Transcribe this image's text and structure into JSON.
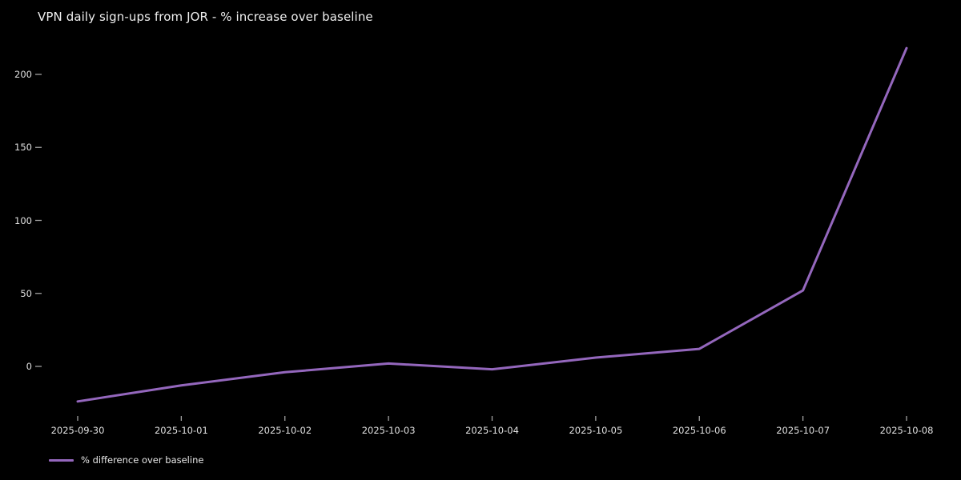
{
  "chart": {
    "title": "VPN daily sign-ups from JOR - % increase over baseline"
  },
  "legend": {
    "label": "% difference over baseline"
  },
  "chart_data": {
    "type": "line",
    "title": "VPN daily sign-ups from JOR - % increase over baseline",
    "x": [
      "2025-09-30",
      "2025-10-01",
      "2025-10-02",
      "2025-10-03",
      "2025-10-04",
      "2025-10-05",
      "2025-10-06",
      "2025-10-07",
      "2025-10-08"
    ],
    "series": [
      {
        "name": "% difference over baseline",
        "values": [
          -24,
          -13,
          -4,
          2,
          -2,
          6,
          12,
          52,
          218
        ],
        "color": "#9467bd"
      }
    ],
    "xlabel": "",
    "ylabel": "",
    "y_ticks": [
      0,
      50,
      100,
      150,
      200
    ],
    "ylim": [
      -35,
      235
    ],
    "grid": false,
    "legend_position": "lower-left",
    "background_color": "#000000",
    "text_color": "#e0e0e0",
    "tick_color": "#a0a0a0"
  }
}
